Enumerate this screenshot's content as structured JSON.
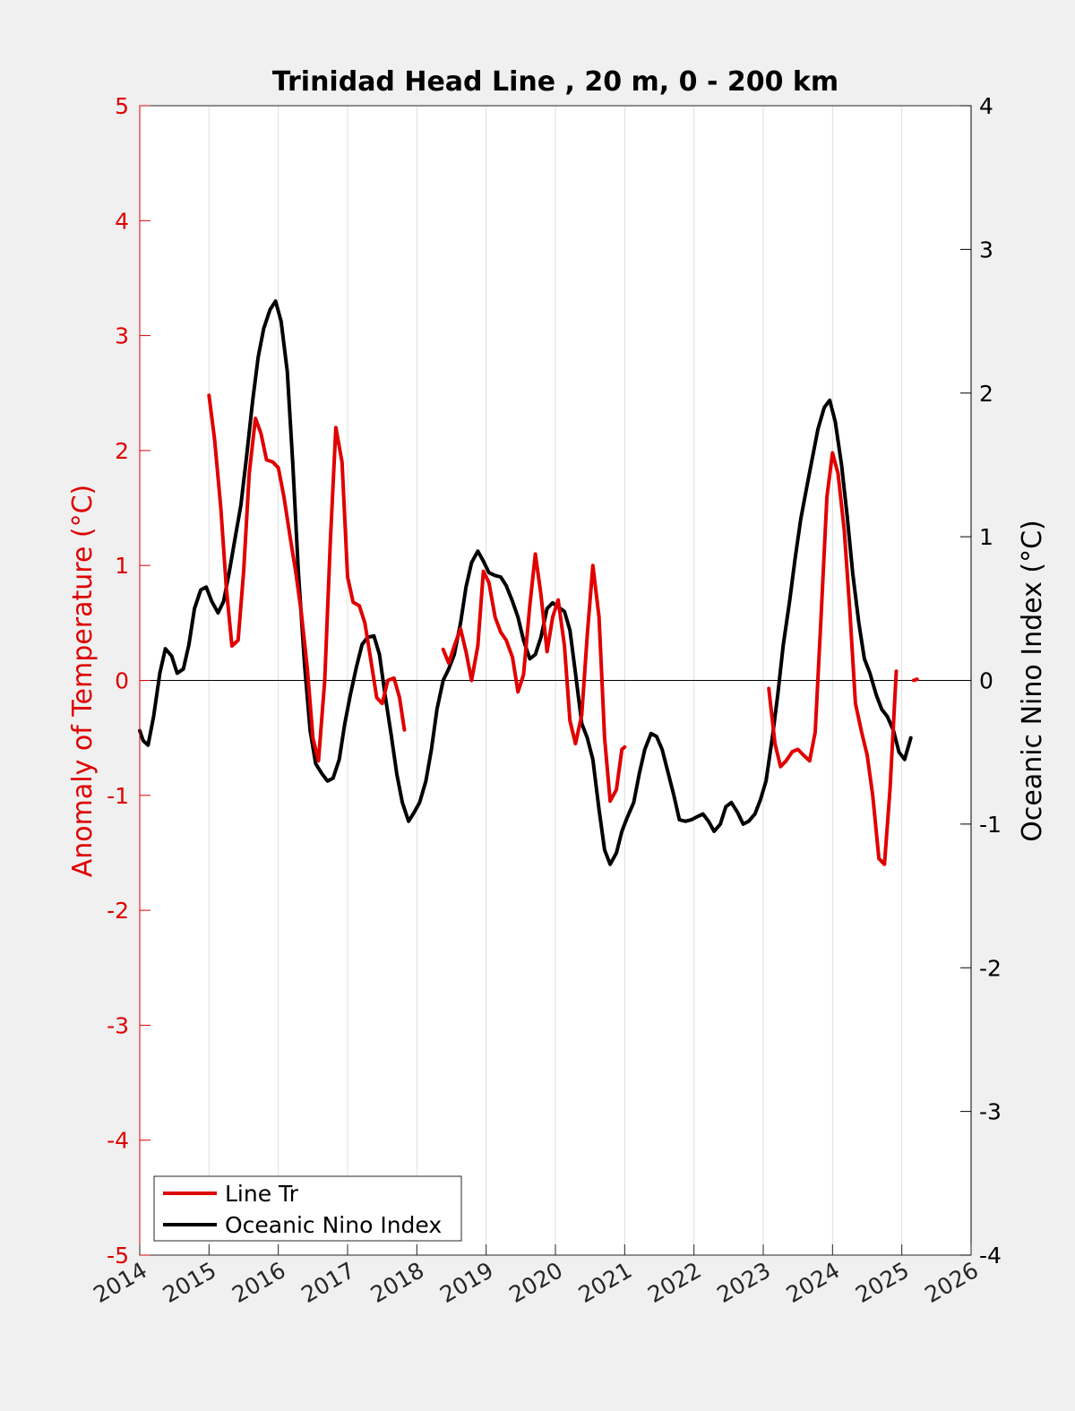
{
  "colors": {
    "figure_bg": "#f0f0f0",
    "axes_bg": "#ffffff",
    "left_axis": "#dd0000",
    "right_axis": "#000000",
    "grid": "#dfdfdf",
    "line_tr": "#e00000",
    "oni": "#000000"
  },
  "chart_data": {
    "type": "line",
    "title": "Trinidad Head Line , 20 m, 0 - 200 km",
    "xlabel": "",
    "ylabel_left": "Anomaly of Temperature (°C)",
    "ylabel_right": "Oceanic Nino Index (°C)",
    "xlim": [
      2014,
      2026
    ],
    "ylim_left": [
      -5,
      5
    ],
    "ylim_right": [
      -4,
      4
    ],
    "x_ticks": [
      2014,
      2015,
      2016,
      2017,
      2018,
      2019,
      2020,
      2021,
      2022,
      2023,
      2024,
      2025,
      2026
    ],
    "x_tick_labels": [
      "2014",
      "2015",
      "2016",
      "2017",
      "2018",
      "2019",
      "2020",
      "2021",
      "2022",
      "2023",
      "2024",
      "2025",
      "2026"
    ],
    "y_ticks_left": [
      5,
      4,
      3,
      2,
      1,
      0,
      -1,
      -2,
      -3,
      -4,
      -5
    ],
    "y_tick_labels_left": [
      "5",
      "4",
      "3",
      "2",
      "1",
      "0",
      "-1",
      "-2",
      "-3",
      "-4",
      "-5"
    ],
    "y_ticks_right": [
      4,
      3,
      2,
      1,
      0,
      -1,
      -2,
      -3,
      -4
    ],
    "y_tick_labels_right": [
      "4",
      "3",
      "2",
      "1",
      "0",
      "-1",
      "-2",
      "-3",
      "-4"
    ],
    "grid": "vertical",
    "zero_line": 0,
    "legend": {
      "placement": "bottom-left",
      "entries": [
        "Line Tr",
        "Oceanic Nino Index"
      ]
    },
    "series": [
      {
        "name": "Line Tr",
        "axis": "left",
        "segments": [
          [
            [
              2015.0,
              2.48
            ],
            [
              2015.08,
              2.1
            ],
            [
              2015.17,
              1.5
            ],
            [
              2015.25,
              0.8
            ],
            [
              2015.33,
              0.3
            ],
            [
              2015.42,
              0.35
            ],
            [
              2015.5,
              0.95
            ],
            [
              2015.58,
              1.8
            ],
            [
              2015.67,
              2.28
            ],
            [
              2015.75,
              2.15
            ],
            [
              2015.83,
              1.92
            ],
            [
              2015.92,
              1.9
            ],
            [
              2016.0,
              1.85
            ],
            [
              2016.08,
              1.6
            ],
            [
              2016.17,
              1.25
            ],
            [
              2016.25,
              0.95
            ],
            [
              2016.33,
              0.6
            ],
            [
              2016.42,
              0.1
            ],
            [
              2016.5,
              -0.5
            ],
            [
              2016.58,
              -0.7
            ],
            [
              2016.67,
              0.0
            ],
            [
              2016.75,
              1.2
            ],
            [
              2016.83,
              2.2
            ],
            [
              2016.92,
              1.9
            ],
            [
              2017.0,
              0.9
            ],
            [
              2017.08,
              0.68
            ],
            [
              2017.17,
              0.65
            ],
            [
              2017.25,
              0.5
            ],
            [
              2017.33,
              0.2
            ],
            [
              2017.42,
              -0.15
            ],
            [
              2017.5,
              -0.2
            ],
            [
              2017.58,
              0.0
            ],
            [
              2017.67,
              0.02
            ],
            [
              2017.75,
              -0.15
            ],
            [
              2017.82,
              -0.43
            ]
          ],
          [
            [
              2018.38,
              0.27
            ],
            [
              2018.46,
              0.15
            ],
            [
              2018.54,
              0.3
            ],
            [
              2018.63,
              0.45
            ],
            [
              2018.71,
              0.25
            ],
            [
              2018.79,
              0.0
            ],
            [
              2018.88,
              0.3
            ],
            [
              2018.96,
              0.95
            ],
            [
              2019.04,
              0.85
            ],
            [
              2019.13,
              0.55
            ],
            [
              2019.21,
              0.42
            ],
            [
              2019.29,
              0.35
            ],
            [
              2019.38,
              0.2
            ],
            [
              2019.46,
              -0.1
            ],
            [
              2019.54,
              0.05
            ],
            [
              2019.63,
              0.65
            ],
            [
              2019.71,
              1.1
            ],
            [
              2019.79,
              0.75
            ],
            [
              2019.88,
              0.25
            ],
            [
              2019.96,
              0.55
            ],
            [
              2020.04,
              0.7
            ],
            [
              2020.13,
              0.3
            ],
            [
              2020.21,
              -0.35
            ],
            [
              2020.29,
              -0.55
            ],
            [
              2020.38,
              -0.3
            ],
            [
              2020.46,
              0.4
            ],
            [
              2020.54,
              1.0
            ],
            [
              2020.63,
              0.55
            ],
            [
              2020.71,
              -0.5
            ],
            [
              2020.79,
              -1.05
            ],
            [
              2020.88,
              -0.95
            ],
            [
              2020.96,
              -0.6
            ],
            [
              2021.0,
              -0.58
            ]
          ],
          [
            [
              2023.08,
              -0.07
            ],
            [
              2023.17,
              -0.55
            ],
            [
              2023.25,
              -0.75
            ],
            [
              2023.33,
              -0.7
            ],
            [
              2023.42,
              -0.62
            ],
            [
              2023.5,
              -0.6
            ],
            [
              2023.58,
              -0.65
            ],
            [
              2023.67,
              -0.7
            ],
            [
              2023.75,
              -0.45
            ],
            [
              2023.83,
              0.5
            ],
            [
              2023.92,
              1.6
            ],
            [
              2024.0,
              1.98
            ],
            [
              2024.08,
              1.8
            ],
            [
              2024.17,
              1.3
            ],
            [
              2024.25,
              0.6
            ],
            [
              2024.33,
              -0.2
            ],
            [
              2024.42,
              -0.45
            ],
            [
              2024.5,
              -0.65
            ],
            [
              2024.58,
              -1.0
            ],
            [
              2024.67,
              -1.55
            ],
            [
              2024.75,
              -1.6
            ],
            [
              2024.83,
              -0.95
            ],
            [
              2024.92,
              0.08
            ]
          ],
          [
            [
              2025.17,
              0.0
            ],
            [
              2025.22,
              0.01
            ]
          ]
        ]
      },
      {
        "name": "Oceanic Nino Index",
        "axis": "right",
        "segments": [
          [
            [
              2014.0,
              -0.35
            ],
            [
              2014.05,
              -0.42
            ],
            [
              2014.12,
              -0.45
            ],
            [
              2014.2,
              -0.25
            ],
            [
              2014.29,
              0.05
            ],
            [
              2014.37,
              0.22
            ],
            [
              2014.46,
              0.17
            ],
            [
              2014.54,
              0.05
            ],
            [
              2014.63,
              0.08
            ],
            [
              2014.71,
              0.25
            ],
            [
              2014.79,
              0.5
            ],
            [
              2014.88,
              0.63
            ],
            [
              2014.96,
              0.65
            ],
            [
              2015.04,
              0.55
            ],
            [
              2015.13,
              0.47
            ],
            [
              2015.21,
              0.55
            ],
            [
              2015.29,
              0.75
            ],
            [
              2015.38,
              1.0
            ],
            [
              2015.46,
              1.22
            ],
            [
              2015.54,
              1.55
            ],
            [
              2015.63,
              1.95
            ],
            [
              2015.71,
              2.25
            ],
            [
              2015.79,
              2.45
            ],
            [
              2015.88,
              2.58
            ],
            [
              2015.96,
              2.64
            ],
            [
              2016.04,
              2.5
            ],
            [
              2016.13,
              2.15
            ],
            [
              2016.21,
              1.5
            ],
            [
              2016.29,
              0.75
            ],
            [
              2016.38,
              0.1
            ],
            [
              2016.46,
              -0.35
            ],
            [
              2016.54,
              -0.58
            ],
            [
              2016.63,
              -0.65
            ],
            [
              2016.71,
              -0.7
            ],
            [
              2016.79,
              -0.68
            ],
            [
              2016.88,
              -0.55
            ],
            [
              2016.96,
              -0.3
            ],
            [
              2017.04,
              -0.1
            ],
            [
              2017.13,
              0.1
            ],
            [
              2017.21,
              0.25
            ],
            [
              2017.29,
              0.3
            ],
            [
              2017.38,
              0.31
            ],
            [
              2017.46,
              0.18
            ],
            [
              2017.54,
              -0.1
            ],
            [
              2017.63,
              -0.38
            ],
            [
              2017.71,
              -0.65
            ],
            [
              2017.79,
              -0.85
            ],
            [
              2017.88,
              -0.98
            ],
            [
              2017.96,
              -0.92
            ],
            [
              2018.04,
              -0.85
            ],
            [
              2018.13,
              -0.7
            ],
            [
              2018.21,
              -0.48
            ],
            [
              2018.29,
              -0.2
            ],
            [
              2018.38,
              0.0
            ],
            [
              2018.46,
              0.08
            ],
            [
              2018.54,
              0.18
            ],
            [
              2018.63,
              0.4
            ],
            [
              2018.71,
              0.65
            ],
            [
              2018.79,
              0.82
            ],
            [
              2018.88,
              0.9
            ],
            [
              2018.96,
              0.83
            ],
            [
              2019.04,
              0.75
            ],
            [
              2019.13,
              0.73
            ],
            [
              2019.21,
              0.72
            ],
            [
              2019.29,
              0.66
            ],
            [
              2019.38,
              0.55
            ],
            [
              2019.46,
              0.44
            ],
            [
              2019.54,
              0.28
            ],
            [
              2019.63,
              0.15
            ],
            [
              2019.71,
              0.18
            ],
            [
              2019.79,
              0.3
            ],
            [
              2019.88,
              0.5
            ],
            [
              2019.96,
              0.54
            ],
            [
              2020.04,
              0.51
            ],
            [
              2020.13,
              0.48
            ],
            [
              2020.21,
              0.35
            ],
            [
              2020.29,
              0.05
            ],
            [
              2020.38,
              -0.3
            ],
            [
              2020.46,
              -0.4
            ],
            [
              2020.54,
              -0.55
            ],
            [
              2020.63,
              -0.9
            ],
            [
              2020.71,
              -1.18
            ],
            [
              2020.79,
              -1.28
            ],
            [
              2020.88,
              -1.2
            ],
            [
              2020.96,
              -1.05
            ],
            [
              2021.04,
              -0.95
            ],
            [
              2021.13,
              -0.85
            ],
            [
              2021.21,
              -0.65
            ],
            [
              2021.29,
              -0.48
            ],
            [
              2021.38,
              -0.37
            ],
            [
              2021.46,
              -0.39
            ],
            [
              2021.54,
              -0.48
            ],
            [
              2021.63,
              -0.65
            ],
            [
              2021.71,
              -0.8
            ],
            [
              2021.79,
              -0.97
            ],
            [
              2021.88,
              -0.98
            ],
            [
              2021.96,
              -0.97
            ],
            [
              2022.04,
              -0.95
            ],
            [
              2022.13,
              -0.93
            ],
            [
              2022.21,
              -0.98
            ],
            [
              2022.29,
              -1.05
            ],
            [
              2022.38,
              -1.0
            ],
            [
              2022.46,
              -0.88
            ],
            [
              2022.54,
              -0.85
            ],
            [
              2022.63,
              -0.92
            ],
            [
              2022.71,
              -1.0
            ],
            [
              2022.79,
              -0.98
            ],
            [
              2022.88,
              -0.93
            ],
            [
              2022.96,
              -0.83
            ],
            [
              2023.04,
              -0.7
            ],
            [
              2023.13,
              -0.4
            ],
            [
              2023.21,
              -0.1
            ],
            [
              2023.29,
              0.25
            ],
            [
              2023.38,
              0.55
            ],
            [
              2023.46,
              0.85
            ],
            [
              2023.54,
              1.12
            ],
            [
              2023.63,
              1.35
            ],
            [
              2023.71,
              1.55
            ],
            [
              2023.79,
              1.75
            ],
            [
              2023.88,
              1.9
            ],
            [
              2023.96,
              1.95
            ],
            [
              2024.04,
              1.8
            ],
            [
              2024.13,
              1.5
            ],
            [
              2024.21,
              1.15
            ],
            [
              2024.29,
              0.75
            ],
            [
              2024.38,
              0.4
            ],
            [
              2024.46,
              0.15
            ],
            [
              2024.54,
              0.05
            ],
            [
              2024.63,
              -0.1
            ],
            [
              2024.71,
              -0.2
            ],
            [
              2024.79,
              -0.25
            ],
            [
              2024.88,
              -0.35
            ],
            [
              2024.96,
              -0.5
            ],
            [
              2025.04,
              -0.55
            ],
            [
              2025.13,
              -0.4
            ]
          ]
        ]
      }
    ]
  }
}
